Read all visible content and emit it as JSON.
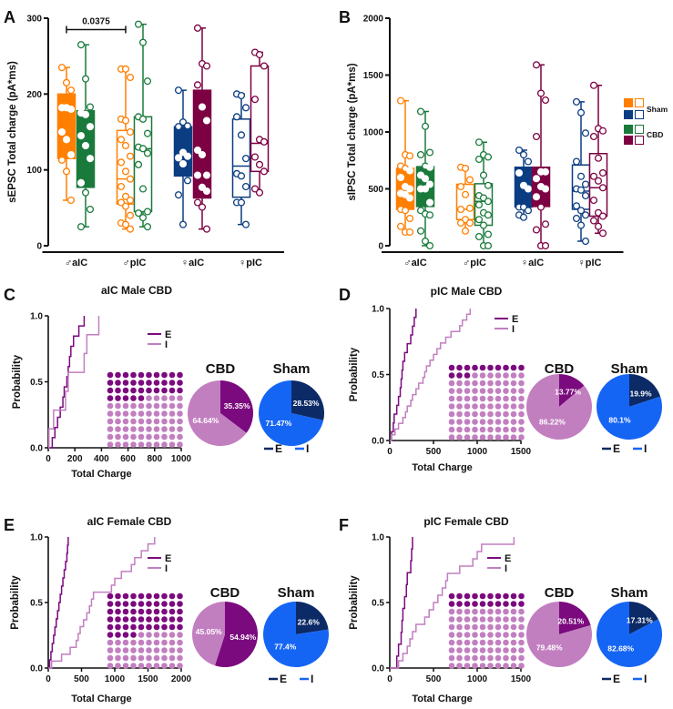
{
  "colors": {
    "orange": "#ff7f00",
    "green": "#1a7a3c",
    "blue": "#0b3d82",
    "maroon": "#7c0042",
    "cbd_E": "#7b0a7e",
    "cbd_I": "#c27fc0",
    "sham_E": "#0b2a66",
    "sham_I": "#1565f5"
  },
  "legend_B": {
    "sham": "Sham",
    "cbd": "CBD"
  },
  "chart_data": [
    {
      "panel": "A",
      "type": "box",
      "ylabel": "sEPSC Total charge (pA*ms)",
      "ylim": [
        0,
        300
      ],
      "yticks": [
        0,
        100,
        200,
        300
      ],
      "significance": {
        "label": "0.0375",
        "from": 0,
        "to": 2,
        "y": 285
      },
      "groups": [
        {
          "label": "♂aIC",
          "boxes": [
            {
              "condition": "Sham",
              "color": "orange",
              "filled": true,
              "min": 60,
              "q1": 115,
              "median": 150,
              "q3": 200,
              "max": 235,
              "points": [
                235,
                215,
                205,
                182,
                182,
                180,
                150,
                140,
                120,
                113,
                98,
                60
              ]
            },
            {
              "condition": "CBD",
              "color": "green",
              "filled": true,
              "min": 25,
              "q1": 77,
              "median": 145,
              "q3": 178,
              "max": 265,
              "points": [
                265,
                220,
                183,
                175,
                173,
                157,
                145,
                132,
                115,
                83,
                70,
                48,
                25
              ]
            }
          ]
        },
        {
          "label": "♂pIC",
          "boxes": [
            {
              "condition": "Sham",
              "color": "orange",
              "filled": false,
              "min": 22,
              "q1": 55,
              "median": 88,
              "q3": 152,
              "max": 233,
              "points": [
                233,
                233,
                222,
                167,
                165,
                150,
                140,
                132,
                118,
                110,
                98,
                88,
                78,
                65,
                60,
                57,
                52,
                40,
                30,
                28,
                22
              ]
            },
            {
              "condition": "CBD",
              "color": "green",
              "filled": false,
              "min": 25,
              "q1": 45,
              "median": 128,
              "q3": 170,
              "max": 292,
              "points": [
                292,
                268,
                217,
                170,
                167,
                148,
                130,
                128,
                122,
                107,
                75,
                45,
                43,
                37,
                25
              ]
            }
          ]
        },
        {
          "label": "♀aIC",
          "boxes": [
            {
              "condition": "Sham",
              "color": "blue",
              "filled": true,
              "min": 28,
              "q1": 92,
              "median": 116,
              "q3": 157,
              "max": 205,
              "points": [
                205,
                163,
                158,
                157,
                123,
                118,
                116,
                108,
                86,
                67,
                28
              ]
            },
            {
              "condition": "CBD",
              "color": "maroon",
              "filled": true,
              "min": 22,
              "q1": 63,
              "median": 120,
              "q3": 205,
              "max": 287,
              "points": [
                287,
                240,
                237,
                212,
                183,
                165,
                126,
                120,
                93,
                93,
                77,
                72,
                57,
                51,
                22
              ]
            }
          ]
        },
        {
          "label": "♀pIC",
          "boxes": [
            {
              "condition": "Sham",
              "color": "blue",
              "filled": false,
              "min": 28,
              "q1": 64,
              "median": 105,
              "q3": 167,
              "max": 200,
              "points": [
                200,
                198,
                182,
                170,
                146,
                115,
                95,
                92,
                78,
                57,
                57,
                28
              ]
            },
            {
              "condition": "CBD",
              "color": "maroon",
              "filled": false,
              "min": 70,
              "q1": 98,
              "median": 135,
              "q3": 237,
              "max": 255,
              "points": [
                255,
                252,
                237,
                193,
                140,
                137,
                117,
                107,
                98,
                75,
                70
              ]
            }
          ]
        }
      ]
    },
    {
      "panel": "B",
      "type": "box",
      "ylabel": "sIPSC Total charge (pA*ms)",
      "ylim": [
        0,
        2000
      ],
      "yticks": [
        0,
        500,
        1000,
        1500,
        2000
      ],
      "groups": [
        {
          "label": "♂aIC",
          "boxes": [
            {
              "condition": "Sham",
              "color": "orange",
              "filled": true,
              "min": 120,
              "q1": 320,
              "median": 480,
              "q3": 680,
              "max": 1275,
              "points": [
                1275,
                800,
                790,
                700,
                680,
                660,
                600,
                520,
                500,
                460,
                450,
                420,
                320,
                310,
                240,
                170,
                120,
                120
              ]
            },
            {
              "condition": "CBD",
              "color": "green",
              "filled": true,
              "min": 0,
              "q1": 345,
              "median": 540,
              "q3": 695,
              "max": 1180,
              "points": [
                1180,
                1050,
                820,
                800,
                700,
                690,
                620,
                590,
                540,
                500,
                500,
                380,
                310,
                280,
                270,
                130,
                40,
                0
              ]
            }
          ]
        },
        {
          "label": "♂pIC",
          "boxes": [
            {
              "condition": "Sham",
              "color": "orange",
              "filled": false,
              "min": 130,
              "q1": 230,
              "median": 320,
              "q3": 540,
              "max": 690,
              "points": [
                690,
                680,
                580,
                520,
                450,
                330,
                320,
                230,
                200,
                200,
                130
              ]
            },
            {
              "condition": "CBD",
              "color": "green",
              "filled": false,
              "min": 0,
              "q1": 180,
              "median": 390,
              "q3": 545,
              "max": 910,
              "points": [
                910,
                800,
                780,
                760,
                620,
                530,
                440,
                420,
                390,
                360,
                290,
                270,
                230,
                180,
                100,
                80,
                0,
                0
              ]
            }
          ]
        },
        {
          "label": "♀aIC",
          "boxes": [
            {
              "condition": "Sham",
              "color": "blue",
              "filled": true,
              "min": 250,
              "q1": 340,
              "median": 500,
              "q3": 690,
              "max": 840,
              "points": [
                840,
                800,
                740,
                640,
                530,
                500,
                340,
                340,
                310,
                270,
                250
              ]
            },
            {
              "condition": "CBD",
              "color": "maroon",
              "filled": true,
              "min": 0,
              "q1": 345,
              "median": 520,
              "q3": 690,
              "max": 1590,
              "points": [
                1590,
                1340,
                1280,
                960,
                650,
                650,
                590,
                520,
                500,
                430,
                340,
                190,
                140,
                0,
                0
              ]
            }
          ]
        },
        {
          "label": "♀pIC",
          "boxes": [
            {
              "condition": "Sham",
              "color": "blue",
              "filled": false,
              "min": 40,
              "q1": 320,
              "median": 480,
              "q3": 710,
              "max": 1265,
              "points": [
                1265,
                1170,
                990,
                740,
                610,
                540,
                500,
                490,
                440,
                350,
                310,
                270,
                240,
                180,
                40
              ]
            },
            {
              "condition": "CBD",
              "color": "maroon",
              "filled": false,
              "min": 110,
              "q1": 260,
              "median": 510,
              "q3": 810,
              "max": 1410,
              "points": [
                1410,
                1030,
                1010,
                960,
                770,
                640,
                610,
                570,
                510,
                400,
                290,
                260,
                220,
                170,
                110
              ]
            }
          ]
        }
      ]
    },
    {
      "panel": "C",
      "type": "ecdf+pie",
      "title": "aIC Male CBD",
      "xlabel": "Total Charge",
      "ylabel": "Probability",
      "xlim": [
        0,
        1000
      ],
      "xticks": [
        0,
        200,
        400,
        600,
        800,
        1000
      ],
      "yticks": [
        "0.0",
        "0.5",
        "1.0"
      ],
      "series": [
        {
          "name": "E",
          "values": [
            30,
            50,
            70,
            90,
            110,
            120,
            140,
            150,
            160,
            170,
            190,
            230,
            270
          ]
        },
        {
          "name": "I",
          "values": [
            5,
            40,
            130,
            150,
            270,
            290,
            380
          ]
        }
      ],
      "pies": [
        {
          "title": "CBD",
          "E": 35.35,
          "I": 64.64,
          "E_label": "35.35%",
          "I_label": "64.64%"
        },
        {
          "title": "Sham",
          "E": 28.53,
          "I": 71.47,
          "E_label": "28.53%",
          "I_label": "71.47%"
        }
      ],
      "waffle_E_percent": 35.35,
      "pie_legend": [
        "E",
        "I"
      ]
    },
    {
      "panel": "D",
      "type": "ecdf+pie",
      "title": "pIC Male CBD",
      "xlabel": "Total Charge",
      "ylabel": "Probability",
      "xlim": [
        0,
        1500
      ],
      "xticks": [
        0,
        500,
        1000,
        1500
      ],
      "yticks": [
        "0.0",
        "0.5",
        "1.0"
      ],
      "series": [
        {
          "name": "E",
          "values": [
            20,
            40,
            50,
            80,
            100,
            120,
            130,
            140,
            150,
            170,
            200,
            240,
            260,
            280,
            300
          ]
        },
        {
          "name": "I",
          "values": [
            20,
            60,
            100,
            150,
            180,
            200,
            240,
            260,
            300,
            330,
            380,
            400,
            420,
            460,
            500,
            540,
            580,
            640,
            700,
            800,
            830,
            880,
            920
          ]
        }
      ],
      "pies": [
        {
          "title": "CBD",
          "E": 13.77,
          "I": 86.22,
          "E_label": "13.77%",
          "I_label": "86.22%"
        },
        {
          "title": "Sham",
          "E": 19.9,
          "I": 80.1,
          "E_label": "19.9%",
          "I_label": "80.1%"
        }
      ],
      "waffle_E_percent": 13.77,
      "pie_legend": [
        "E",
        "I"
      ]
    },
    {
      "panel": "E",
      "type": "ecdf+pie",
      "title": "aIC Female CBD",
      "xlabel": "Total Charge",
      "ylabel": "Probability",
      "xlim": [
        0,
        2000
      ],
      "xticks": [
        0,
        500,
        1000,
        1500,
        2000
      ],
      "yticks": [
        "0.0",
        "0.5",
        "1.0"
      ],
      "series": [
        {
          "name": "E",
          "values": [
            20,
            40,
            60,
            80,
            100,
            120,
            140,
            160,
            180,
            200,
            220,
            240,
            260,
            280,
            290,
            300
          ]
        },
        {
          "name": "I",
          "values": [
            50,
            200,
            330,
            420,
            450,
            480,
            530,
            580,
            620,
            650,
            680,
            950,
            1000,
            1100,
            1250,
            1300,
            1400,
            1500,
            1600
          ]
        }
      ],
      "pies": [
        {
          "title": "CBD",
          "E": 54.94,
          "I": 45.05,
          "E_label": "54.94%",
          "I_label": "45.05%"
        },
        {
          "title": "Sham",
          "E": 22.6,
          "I": 77.4,
          "E_label": "22.6%",
          "I_label": "77.4%"
        }
      ],
      "waffle_E_percent": 54.94,
      "pie_legend": [
        "E",
        "I"
      ]
    },
    {
      "panel": "F",
      "type": "ecdf+pie",
      "title": "pIC Female CBD",
      "xlabel": "Total Charge",
      "ylabel": "Probability",
      "xlim": [
        0,
        1500
      ],
      "xticks": [
        0,
        500,
        1000,
        1500
      ],
      "yticks": [
        "0.0",
        "0.5",
        "1.0"
      ],
      "series": [
        {
          "name": "E",
          "values": [
            80,
            100,
            130,
            140,
            150,
            170,
            190,
            200,
            240,
            250,
            260
          ]
        },
        {
          "name": "I",
          "values": [
            100,
            150,
            200,
            230,
            260,
            300,
            400,
            450,
            500,
            550,
            600,
            640,
            660,
            800,
            950,
            1000,
            1050,
            1420
          ]
        }
      ],
      "pies": [
        {
          "title": "CBD",
          "E": 20.51,
          "I": 79.48,
          "E_label": "20.51%",
          "I_label": "79.48%"
        },
        {
          "title": "Sham",
          "E": 17.31,
          "I": 82.68,
          "E_label": "17.31%",
          "I_label": "82.68%"
        }
      ],
      "waffle_E_percent": 20.51,
      "pie_legend": [
        "E",
        "I"
      ]
    }
  ]
}
